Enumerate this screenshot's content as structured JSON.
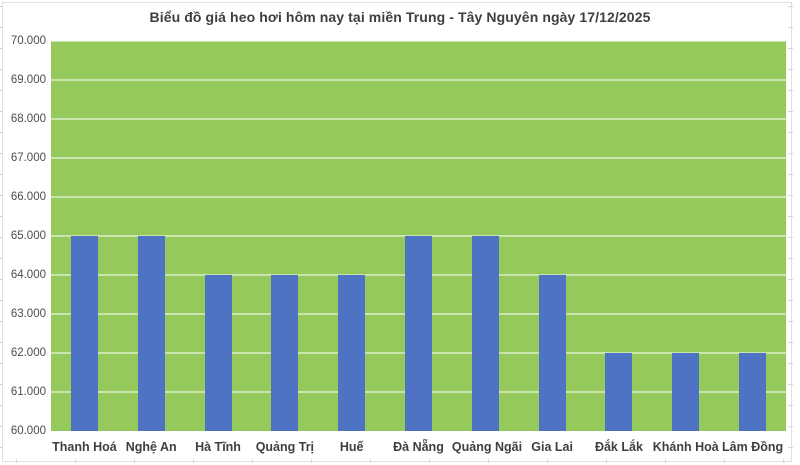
{
  "chart_data": {
    "type": "bar",
    "title": "Biểu đồ giá heo hơi hôm nay tại miền Trung - Tây Nguyên ngày 17/12/2025",
    "categories": [
      "Thanh Hoá",
      "Nghệ An",
      "Hà Tĩnh",
      "Quảng Trị",
      "Huế",
      "Đà Nẵng",
      "Quảng Ngãi",
      "Gia Lai",
      "Đắk Lắk",
      "Khánh Hoà",
      "Lâm Đồng"
    ],
    "values": [
      65000,
      65000,
      64000,
      64000,
      64000,
      65000,
      65000,
      64000,
      62000,
      62000,
      62000
    ],
    "xlabel": "",
    "ylabel": "",
    "ylim": [
      60000,
      70000
    ],
    "ytick_step": 1000,
    "ytick_labels": [
      "60.000",
      "61.000",
      "62.000",
      "63.000",
      "64.000",
      "65.000",
      "66.000",
      "67.000",
      "68.000",
      "69.000",
      "70.000"
    ],
    "grid": true,
    "legend": "none",
    "colors": {
      "bar": "#4e73c3",
      "plot_background": "#95c95c",
      "gridline": "rgba(255,255,255,0.5)",
      "title_text": "#3f3f3f",
      "axis_text": "#4d4d4d"
    }
  }
}
